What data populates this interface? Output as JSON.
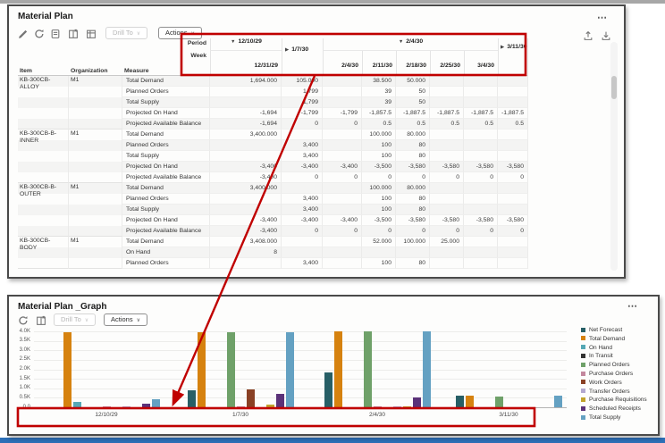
{
  "annotation_color": "#c00000",
  "table_panel": {
    "title": "Material Plan",
    "menu": "⋯",
    "toolbar": {
      "drill_to": "Drill To",
      "actions": "Actions",
      "caret": "∨"
    },
    "columns": {
      "item": "Item",
      "organization": "Organization",
      "measure": "Measure"
    },
    "header": {
      "period_label": "Period",
      "week_label": "Week",
      "expanded": "▼",
      "collapsed": "▶",
      "period1": "12/10/29",
      "period2": "1/7/30",
      "period3": "2/4/30",
      "period4": "3/11/30",
      "weeks": [
        "12/31/29",
        "2/4/30",
        "2/11/30",
        "2/18/30",
        "2/25/30",
        "3/4/30"
      ]
    },
    "groups": [
      {
        "item": "KB-300CB-ALLOY",
        "org": "M1",
        "rows": [
          {
            "measure": "Total Demand",
            "values": [
              "1,694.000",
              "105.000",
              "",
              "38.500",
              "50.000",
              "",
              "",
              ""
            ]
          },
          {
            "measure": "Planned Orders",
            "values": [
              "",
              "1,799",
              "",
              "39",
              "50",
              "",
              "",
              ""
            ]
          },
          {
            "measure": "Total Supply",
            "values": [
              "",
              "1,799",
              "",
              "39",
              "50",
              "",
              "",
              ""
            ]
          },
          {
            "measure": "Projected On Hand",
            "values": [
              "-1,694",
              "-1,799",
              "-1,799",
              "-1,857.5",
              "-1,887.5",
              "-1,887.5",
              "-1,887.5",
              "-1,887.5"
            ]
          },
          {
            "measure": "Projected Available Balance",
            "values": [
              "-1,694",
              "0",
              "0",
              "0.5",
              "0.5",
              "0.5",
              "0.5",
              "0.5"
            ]
          }
        ]
      },
      {
        "item": "KB-300CB-B-INNER",
        "org": "M1",
        "rows": [
          {
            "measure": "Total Demand",
            "values": [
              "3,400.000",
              "",
              "",
              "100.000",
              "80.000",
              "",
              "",
              ""
            ]
          },
          {
            "measure": "Planned Orders",
            "values": [
              "",
              "3,400",
              "",
              "100",
              "80",
              "",
              "",
              ""
            ]
          },
          {
            "measure": "Total Supply",
            "values": [
              "",
              "3,400",
              "",
              "100",
              "80",
              "",
              "",
              ""
            ]
          },
          {
            "measure": "Projected On Hand",
            "values": [
              "-3,400",
              "-3,400",
              "-3,400",
              "-3,500",
              "-3,580",
              "-3,580",
              "-3,580",
              "-3,580"
            ]
          },
          {
            "measure": "Projected Available Balance",
            "values": [
              "-3,400",
              "0",
              "0",
              "0",
              "0",
              "0",
              "0",
              "0"
            ]
          }
        ]
      },
      {
        "item": "KB-300CB-B-OUTER",
        "org": "M1",
        "rows": [
          {
            "measure": "Total Demand",
            "values": [
              "3,400.000",
              "",
              "",
              "100.000",
              "80.000",
              "",
              "",
              ""
            ]
          },
          {
            "measure": "Planned Orders",
            "values": [
              "",
              "3,400",
              "",
              "100",
              "80",
              "",
              "",
              ""
            ]
          },
          {
            "measure": "Total Supply",
            "values": [
              "",
              "3,400",
              "",
              "100",
              "80",
              "",
              "",
              ""
            ]
          },
          {
            "measure": "Projected On Hand",
            "values": [
              "-3,400",
              "-3,400",
              "-3,400",
              "-3,500",
              "-3,580",
              "-3,580",
              "-3,580",
              "-3,580"
            ]
          },
          {
            "measure": "Projected Available Balance",
            "values": [
              "-3,400",
              "0",
              "0",
              "0",
              "0",
              "0",
              "0",
              "0"
            ]
          }
        ]
      },
      {
        "item": "KB-300CB-BODY",
        "org": "M1",
        "rows": [
          {
            "measure": "Total Demand",
            "values": [
              "3,408.000",
              "",
              "",
              "52.000",
              "100.000",
              "25.000",
              "",
              ""
            ]
          },
          {
            "measure": "On Hand",
            "values": [
              "8",
              "",
              "",
              "",
              "",
              "",
              "",
              ""
            ]
          },
          {
            "measure": "Planned Orders",
            "values": [
              "",
              "3,400",
              "",
              "100",
              "80",
              "",
              "",
              ""
            ]
          }
        ]
      }
    ]
  },
  "graph_panel": {
    "title": "Material Plan _Graph",
    "menu": "⋯",
    "toolbar": {
      "drill_to": "Drill To",
      "actions": "Actions",
      "caret": "∨"
    }
  },
  "chart_data": {
    "type": "bar",
    "title": "Material Plan _Graph",
    "categories": [
      "12/10/29",
      "1/7/30",
      "2/4/30",
      "3/11/30"
    ],
    "series": [
      {
        "name": "Net Forecast",
        "color": "#275f66",
        "values": [
          0,
          880,
          1850,
          600
        ]
      },
      {
        "name": "Total Demand",
        "color": "#d6820f",
        "values": [
          3950,
          3950,
          4000,
          600
        ]
      },
      {
        "name": "On Hand",
        "color": "#55a8b5",
        "values": [
          300,
          0,
          0,
          0
        ]
      },
      {
        "name": "In Transit",
        "color": "#333333",
        "values": [
          0,
          0,
          0,
          0
        ]
      },
      {
        "name": "Planned Orders",
        "color": "#6fa169",
        "values": [
          0,
          3950,
          4000,
          550
        ]
      },
      {
        "name": "Purchase Orders",
        "color": "#c4889e",
        "values": [
          40,
          30,
          30,
          0
        ]
      },
      {
        "name": "Work Orders",
        "color": "#8a4125",
        "values": [
          0,
          950,
          0,
          0
        ]
      },
      {
        "name": "Transfer Orders",
        "color": "#b3a8cf",
        "values": [
          30,
          0,
          50,
          0
        ]
      },
      {
        "name": "Purchase Requisitions",
        "color": "#c2a32c",
        "values": [
          0,
          120,
          30,
          0
        ]
      },
      {
        "name": "Scheduled Receipts",
        "color": "#5b3279",
        "values": [
          200,
          700,
          500,
          0
        ]
      },
      {
        "name": "Total Supply",
        "color": "#64a1c2",
        "values": [
          420,
          3950,
          4000,
          630
        ]
      }
    ],
    "ylim": [
      0,
      4000
    ],
    "yticks": [
      "4.0K",
      "3.5K",
      "3.0K",
      "2.5K",
      "2.0K",
      "1.5K",
      "1.0K",
      "0.5K",
      "0.0"
    ],
    "grid": true,
    "legend_position": "right"
  }
}
